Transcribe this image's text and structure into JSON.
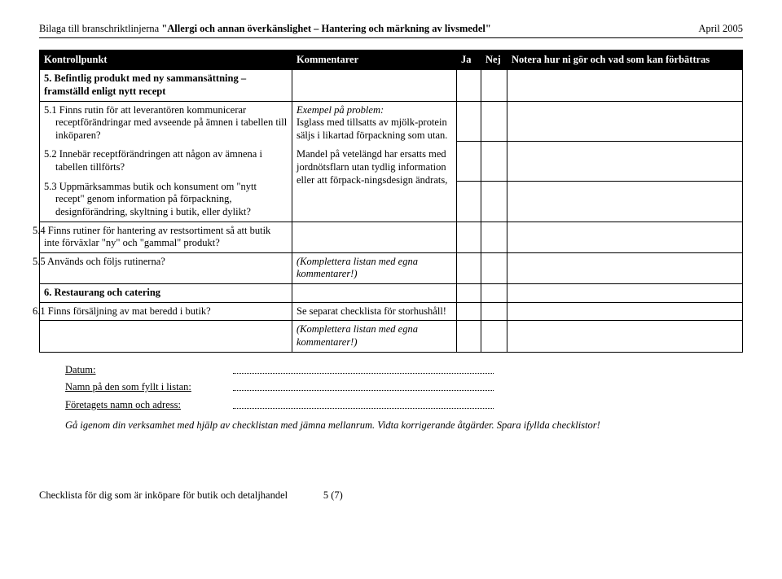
{
  "header": {
    "prefix": "Bilaga till branschriktlinjerna ",
    "quoted": "\"Allergi och annan överkänslighet – Hantering och märkning av livsmedel\"",
    "date": "April 2005"
  },
  "columns": {
    "c1": "Kontrollpunkt",
    "c2": "Kommentarer",
    "c3": "Ja",
    "c4": "Nej",
    "c5": "Notera hur ni gör och vad som kan förbättras"
  },
  "rows": {
    "r5": "5. Befintlig produkt med ny sammansättning – framställd enligt nytt recept",
    "r5_1": "5.1 Finns rutin för att leverantören kommunicerar receptförändringar med avseende på ämnen i tabellen till inköparen?",
    "r5_2": "5.2 Innebär receptförändringen att någon av ämnena i tabellen tillförts?",
    "r5_3": "5.3 Uppmärksammas butik och konsument om \"nytt recept\" genom information på förpackning, designförändring, skyltning i butik, eller dylikt?",
    "r5_4": "5.4 Finns rutiner för hantering av restsortiment så att butik inte förväxlar \"ny\" och \"gammal\" produkt?",
    "r5_5": "5.5 Används och följs rutinerna?",
    "r6": "6. Restaurang och catering",
    "r6_1": "6.1 Finns försäljning av mat beredd i butik?"
  },
  "comments": {
    "ex_title": "Exempel på problem:",
    "ex_body1": "Isglass med tillsatts av mjölk-protein säljs i likartad förpackning som utan.",
    "ex_body2": "Mandel på vetelängd har ersatts med jordnötsflarn utan tydlig information eller att förpack-ningsdesign ändrats,",
    "kompl": "(Komplettera listan med egna kommentarer!)",
    "sep": "Se separat checklista för storhushåll!"
  },
  "signoff": {
    "date": "Datum:",
    "name": "Namn på den som fyllt i listan:",
    "company": "Företagets namn och adress:"
  },
  "instruction": "Gå igenom din verksamhet med hjälp av checklistan med jämna mellanrum. Vidta korrigerande åtgärder. Spara ifyllda checklistor!",
  "footer": {
    "text": "Checklista för dig som är inköpare för butik och detaljhandel",
    "page": "5 (7)"
  }
}
